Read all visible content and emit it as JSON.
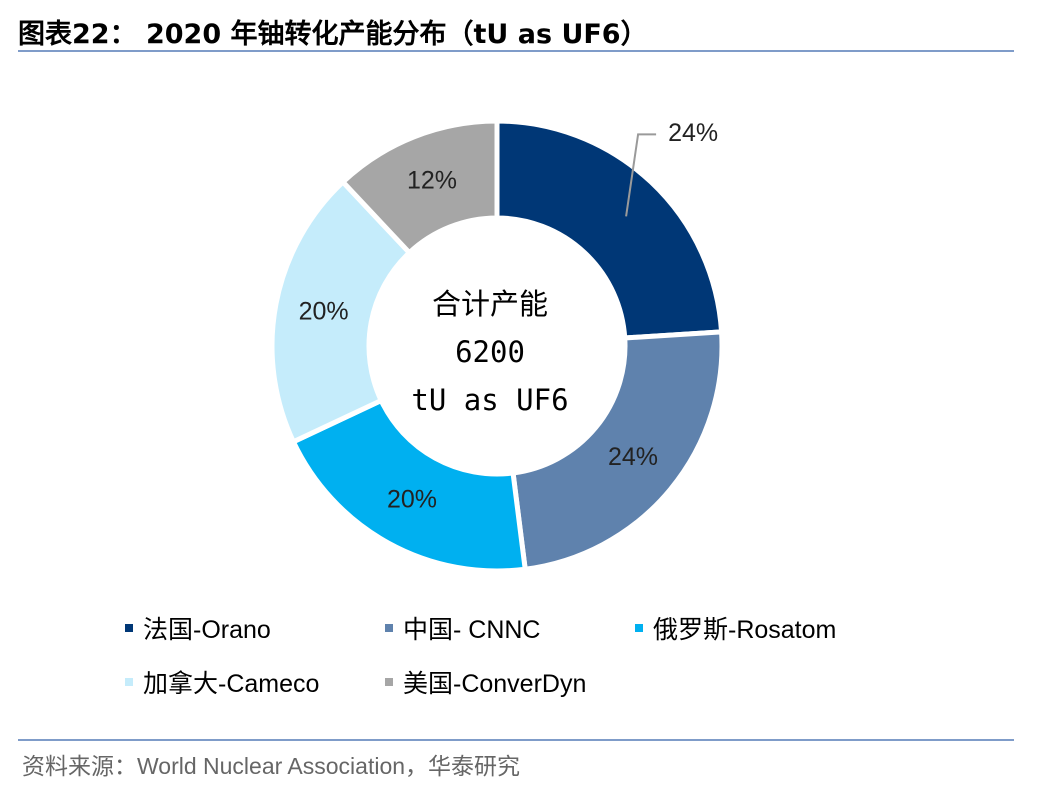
{
  "title": "图表22： 2020 年铀转化产能分布（tU as UF6）",
  "center": {
    "line1": "合计产能",
    "line2": "6200",
    "line3": "tU as UF6"
  },
  "source": "资料来源：World Nuclear Association，华泰研究",
  "chart_data": {
    "type": "pie",
    "variant": "donut",
    "categories": [
      "法国-Orano",
      "中国- CNNC",
      "俄罗斯-Rosatom",
      "加拿大-Cameco",
      "美国-ConverDyn"
    ],
    "values": [
      24,
      24,
      20,
      20,
      12
    ],
    "labels": [
      "24%",
      "24%",
      "20%",
      "20%",
      "12%"
    ],
    "colors": [
      "#003776",
      "#5f82ad",
      "#00b0f0",
      "#c5ecfb",
      "#a6a6a6"
    ],
    "label_color": "#222222",
    "legend_position": "bottom",
    "total": 6200,
    "unit": "tU as UF6"
  }
}
